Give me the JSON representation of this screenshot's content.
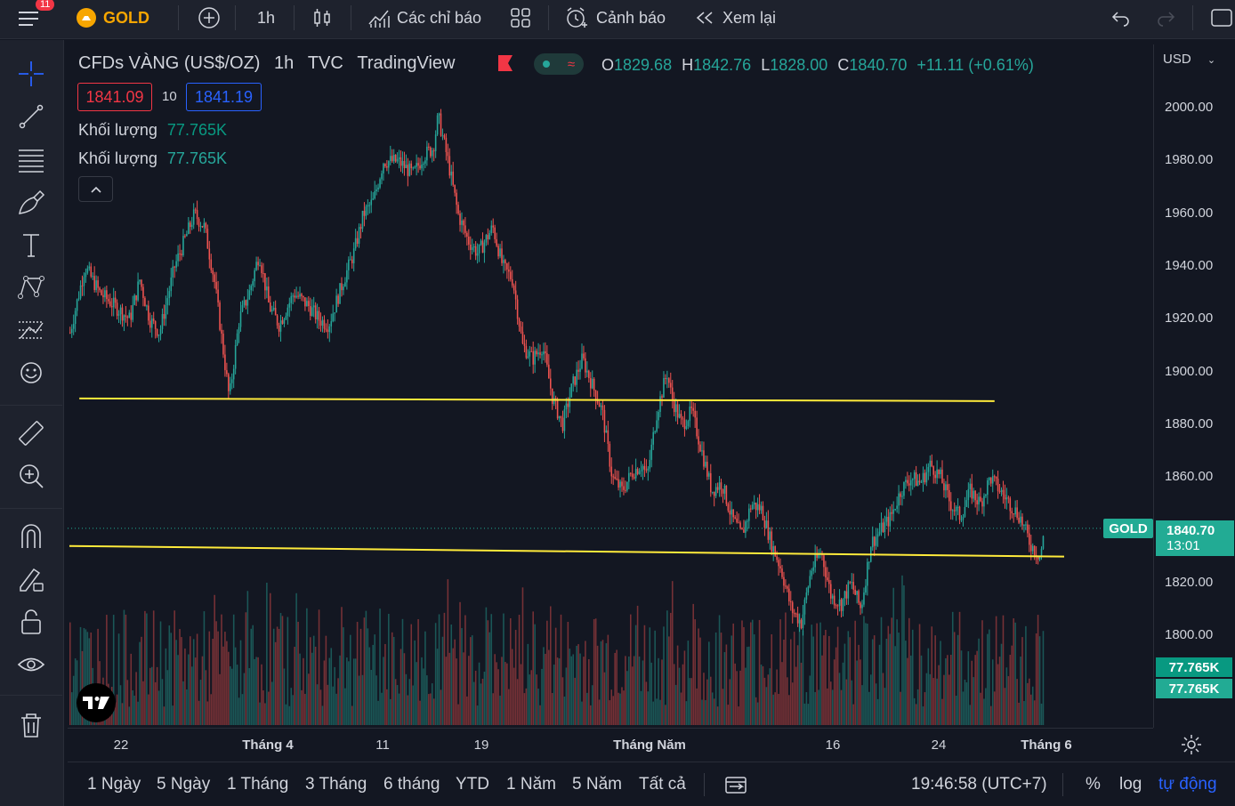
{
  "topbar": {
    "badge": "11",
    "symbol": "GOLD",
    "interval": "1h",
    "indicators": "Các chỉ báo",
    "alerts": "Cảnh báo",
    "replay": "Xem lại"
  },
  "legend": {
    "title": "CFDs VÀNG (US$/OZ)",
    "interval": "1h",
    "source": "TVC",
    "provider": "TradingView",
    "o_label": "O",
    "o": "1829.68",
    "h_label": "H",
    "h": "1842.76",
    "l_label": "L",
    "l": "1828.00",
    "c_label": "C",
    "c": "1840.70",
    "change": "+11.11 (+0.61%)",
    "bid": "1841.09",
    "spread": "10",
    "ask": "1841.19",
    "vol1_label": "Khối lượng",
    "vol1": "77.765K",
    "vol2_label": "Khối lượng",
    "vol2": "77.765K"
  },
  "price_axis": {
    "currency": "USD",
    "ticks": [
      "2000.00",
      "1980.00",
      "1960.00",
      "1940.00",
      "1920.00",
      "1900.00",
      "1880.00",
      "1860.00",
      "1840.00",
      "1820.00",
      "1800.00"
    ],
    "last_label": "GOLD",
    "last_price": "1840.70",
    "countdown": "13:01",
    "vol_label1": "77.765K",
    "vol_label2": "77.765K"
  },
  "time_axis": {
    "ticks": [
      {
        "label": "22",
        "bold": false
      },
      {
        "label": "Tháng 4",
        "bold": true
      },
      {
        "label": "11",
        "bold": false
      },
      {
        "label": "19",
        "bold": false
      },
      {
        "label": "Tháng Năm",
        "bold": true
      },
      {
        "label": "16",
        "bold": false
      },
      {
        "label": "24",
        "bold": false
      },
      {
        "label": "Tháng 6",
        "bold": true
      }
    ]
  },
  "bottombar": {
    "ranges": [
      "1 Ngày",
      "5 Ngày",
      "1 Tháng",
      "3 Tháng",
      "6 tháng",
      "YTD",
      "1 Năm",
      "5 Năm",
      "Tất cả"
    ],
    "clock": "19:46:58 (UTC+7)",
    "percent": "%",
    "log": "log",
    "auto": "tự động"
  },
  "chart_data": {
    "type": "candlestick",
    "ylim": [
      1790,
      2010
    ],
    "price_path": [
      [
        0,
        1915
      ],
      [
        3,
        1940
      ],
      [
        6,
        1930
      ],
      [
        9,
        1925
      ],
      [
        12,
        1920
      ],
      [
        14,
        1935
      ],
      [
        16,
        1920
      ],
      [
        18,
        1915
      ],
      [
        21,
        1940
      ],
      [
        23,
        1950
      ],
      [
        25,
        1960
      ],
      [
        27,
        1955
      ],
      [
        29,
        1935
      ],
      [
        30,
        1920
      ],
      [
        32,
        1890
      ],
      [
        34,
        1920
      ],
      [
        36,
        1930
      ],
      [
        38,
        1945
      ],
      [
        40,
        1925
      ],
      [
        42,
        1918
      ],
      [
        45,
        1930
      ],
      [
        48,
        1925
      ],
      [
        50,
        1920
      ],
      [
        52,
        1918
      ],
      [
        55,
        1935
      ],
      [
        57,
        1945
      ],
      [
        59,
        1960
      ],
      [
        61,
        1965
      ],
      [
        63,
        1980
      ],
      [
        66,
        1980
      ],
      [
        69,
        1975
      ],
      [
        71,
        1982
      ],
      [
        73,
        1985
      ],
      [
        74,
        1997
      ],
      [
        76,
        1980
      ],
      [
        78,
        1960
      ],
      [
        80,
        1950
      ],
      [
        82,
        1945
      ],
      [
        85,
        1955
      ],
      [
        87,
        1940
      ],
      [
        89,
        1935
      ],
      [
        91,
        1910
      ],
      [
        93,
        1905
      ],
      [
        95,
        1910
      ],
      [
        97,
        1890
      ],
      [
        99,
        1880
      ],
      [
        101,
        1895
      ],
      [
        103,
        1905
      ],
      [
        105,
        1895
      ],
      [
        107,
        1885
      ],
      [
        109,
        1860
      ],
      [
        111,
        1855
      ],
      [
        113,
        1862
      ],
      [
        115,
        1865
      ],
      [
        116,
        1860
      ],
      [
        118,
        1885
      ],
      [
        120,
        1900
      ],
      [
        121,
        1890
      ],
      [
        123,
        1880
      ],
      [
        125,
        1885
      ],
      [
        127,
        1870
      ],
      [
        129,
        1855
      ],
      [
        131,
        1858
      ],
      [
        133,
        1845
      ],
      [
        135,
        1838
      ],
      [
        137,
        1850
      ],
      [
        139,
        1848
      ],
      [
        141,
        1835
      ],
      [
        143,
        1825
      ],
      [
        145,
        1810
      ],
      [
        147,
        1805
      ],
      [
        149,
        1825
      ],
      [
        151,
        1832
      ],
      [
        153,
        1815
      ],
      [
        155,
        1812
      ],
      [
        157,
        1820
      ],
      [
        159,
        1810
      ],
      [
        161,
        1835
      ],
      [
        163,
        1840
      ],
      [
        165,
        1845
      ],
      [
        167,
        1855
      ],
      [
        169,
        1860
      ],
      [
        171,
        1858
      ],
      [
        173,
        1865
      ],
      [
        175,
        1860
      ],
      [
        177,
        1850
      ],
      [
        179,
        1845
      ],
      [
        181,
        1855
      ],
      [
        183,
        1850
      ],
      [
        185,
        1860
      ],
      [
        187,
        1855
      ],
      [
        189,
        1850
      ],
      [
        191,
        1845
      ],
      [
        193,
        1835
      ],
      [
        195,
        1830
      ],
      [
        196,
        1840
      ]
    ],
    "support_levels": [
      {
        "from": [
          2,
          1890
        ],
        "to": [
          186,
          1889
        ]
      },
      {
        "from": [
          0,
          1834
        ],
        "to": [
          200,
          1830
        ]
      }
    ]
  }
}
